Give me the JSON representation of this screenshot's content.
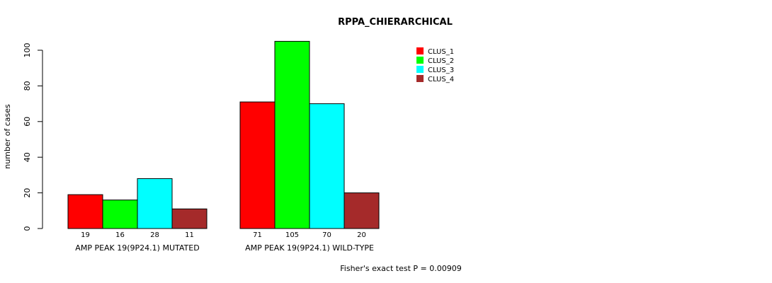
{
  "chart_data": {
    "type": "bar",
    "title": "RPPA_CHIERARCHICAL",
    "xlabel": "",
    "ylabel": "number of cases",
    "ylim": [
      0,
      105
    ],
    "yticks": [
      0,
      20,
      40,
      60,
      80,
      100
    ],
    "categories": [
      "AMP PEAK 19(9P24.1) MUTATED",
      "AMP PEAK 19(9P24.1) WILD-TYPE"
    ],
    "series": [
      {
        "name": "CLUS_1",
        "color": "#ff0000",
        "values": [
          19,
          71
        ]
      },
      {
        "name": "CLUS_2",
        "color": "#00ff00",
        "values": [
          16,
          105
        ]
      },
      {
        "name": "CLUS_3",
        "color": "#00ffff",
        "values": [
          28,
          70
        ]
      },
      {
        "name": "CLUS_4",
        "color": "#a52a2a",
        "values": [
          11,
          20
        ]
      }
    ],
    "legend_position": "top-right",
    "grid": false,
    "footnote": "Fisher's exact test P = 0.00909"
  }
}
